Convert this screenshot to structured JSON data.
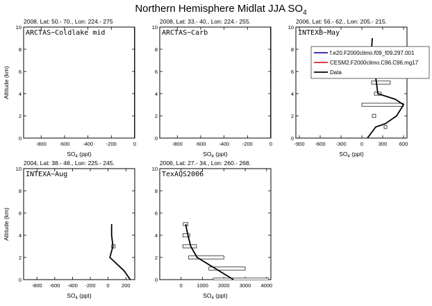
{
  "figure": {
    "title": "Northern Hemisphere Midlat JJA SO",
    "title_sub": "4",
    "ylabel": "Altitude (km)",
    "xlabel_main": "SO",
    "xlabel_sub": "4",
    "xlabel_unit": " (ppt)"
  },
  "chart_data": [
    {
      "type": "line",
      "header": "2008, Lat:  50.- 70., Lon: 224.- 275",
      "campaign": "ARCTAS−Coldlake mid",
      "xlim": [
        -950,
        0
      ],
      "ylim": [
        0,
        10
      ],
      "xticks": [
        -800,
        -600,
        -400,
        -200,
        0
      ],
      "xtick_labels": [
        "-800",
        "-600",
        "-400",
        "-200",
        "0"
      ],
      "yticks": [
        0,
        2,
        4,
        6,
        8,
        10
      ],
      "ytick_labels": [
        "0",
        "2",
        "4",
        "6",
        "8",
        "10"
      ],
      "show_ylabel": true,
      "series": [
        {
          "x": [
            0,
            0
          ],
          "y": [
            0,
            10
          ],
          "color": "#000000"
        }
      ],
      "errorbars": []
    },
    {
      "type": "line",
      "header": "2008, Lat:  33.- 40., Lon: 224.- 255.",
      "campaign": "ARCTAS−Carb",
      "xlim": [
        -950,
        0
      ],
      "ylim": [
        0,
        10
      ],
      "xticks": [
        -800,
        -600,
        -400,
        -200,
        0
      ],
      "xtick_labels": [
        "-800",
        "-600",
        "-400",
        "-200",
        "0"
      ],
      "yticks": [
        0,
        2,
        4,
        6,
        8,
        10
      ],
      "ytick_labels": [
        "0",
        "2",
        "4",
        "6",
        "8",
        "10"
      ],
      "show_ylabel": false,
      "series": [
        {
          "x": [
            0,
            0
          ],
          "y": [
            0,
            10
          ],
          "color": "#000000"
        }
      ],
      "errorbars": []
    },
    {
      "type": "line",
      "header": "2006, Lat:  56.- 62., Lon: 205.- 215.",
      "campaign": "INTEXB−May",
      "xlim": [
        -950,
        650
      ],
      "ylim": [
        0,
        10
      ],
      "xticks": [
        -900,
        -600,
        -300,
        0,
        300,
        600
      ],
      "xtick_labels": [
        "-900",
        "-600",
        "-300",
        "0",
        "300",
        "600"
      ],
      "yticks": [
        0,
        2,
        4,
        6,
        8,
        10
      ],
      "ytick_labels": [
        "0",
        "2",
        "4",
        "6",
        "8",
        "10"
      ],
      "show_ylabel": false,
      "legend": {
        "position": "top-right",
        "entries": [
          {
            "label": "f.e20.F2000climo.f09_f09.297.001",
            "color": "#1a1aa8"
          },
          {
            "label": "CESM2.F2000climo.C96.C96.mg17",
            "color": "#e02020"
          },
          {
            "label": "Data",
            "color": "#000000"
          }
        ]
      },
      "series": [
        {
          "x": [
            80,
            200,
            340,
            500,
            600,
            480,
            230,
            210,
            140,
            150
          ],
          "y": [
            0,
            1,
            1.3,
            2,
            3,
            3.5,
            4,
            5,
            8,
            9
          ],
          "color": "#000000"
        }
      ],
      "errorbars": [
        {
          "y": 5,
          "lo": 140,
          "hi": 410
        },
        {
          "y": 4,
          "lo": 180,
          "hi": 280
        },
        {
          "y": 3,
          "lo": 0,
          "hi": 600
        },
        {
          "y": 2,
          "lo": 150,
          "hi": 200
        },
        {
          "y": 1,
          "lo": 320,
          "hi": 360
        }
      ]
    },
    {
      "type": "line",
      "header": "2004, Lat:  38.- 48., Lon: 225.- 245.",
      "campaign": "INTEXA−Aug",
      "xlim": [
        -950,
        300
      ],
      "ylim": [
        0,
        10
      ],
      "xticks": [
        -800,
        -600,
        -400,
        -200,
        0,
        200
      ],
      "xtick_labels": [
        "-800",
        "-600",
        "-400",
        "-200",
        "0",
        "200"
      ],
      "yticks": [
        0,
        2,
        4,
        6,
        8,
        10
      ],
      "ytick_labels": [
        "0",
        "2",
        "4",
        "6",
        "8",
        "10"
      ],
      "show_ylabel": true,
      "series": [
        {
          "x": [
            250,
            180,
            100,
            20,
            55,
            40,
            40
          ],
          "y": [
            0,
            0.8,
            1.4,
            2,
            3,
            4,
            5
          ],
          "color": "#000000"
        }
      ],
      "errorbars": [
        {
          "y": 3,
          "lo": 40,
          "hi": 80
        }
      ]
    },
    {
      "type": "line",
      "header": "2006, Lat:  27.- 34., Lon: 260.- 268.",
      "campaign": "TexAQS2006",
      "xlim": [
        -1000,
        4200
      ],
      "ylim": [
        0,
        10
      ],
      "xticks": [
        0,
        1000,
        2000,
        3000,
        4000
      ],
      "xtick_labels": [
        "0",
        "1000",
        "2000",
        "3000",
        "4000"
      ],
      "yticks": [
        0,
        2,
        4,
        6,
        8,
        10
      ],
      "ytick_labels": [
        "0",
        "2",
        "4",
        "6",
        "8",
        "10"
      ],
      "show_ylabel": false,
      "series": [
        {
          "x": [
            2450,
            1600,
            750,
            450,
            320,
            260,
            220
          ],
          "y": [
            0,
            1,
            2,
            3,
            4,
            4.5,
            5
          ],
          "color": "#000000"
        }
      ],
      "errorbars": [
        {
          "y": 0,
          "lo": 1500,
          "hi": 4100
        },
        {
          "y": 1,
          "lo": 1300,
          "hi": 3000
        },
        {
          "y": 2,
          "lo": 350,
          "hi": 2000
        },
        {
          "y": 3,
          "lo": 80,
          "hi": 720
        },
        {
          "y": 4,
          "lo": 80,
          "hi": 400
        },
        {
          "y": 5,
          "lo": 100,
          "hi": 320
        }
      ]
    }
  ]
}
